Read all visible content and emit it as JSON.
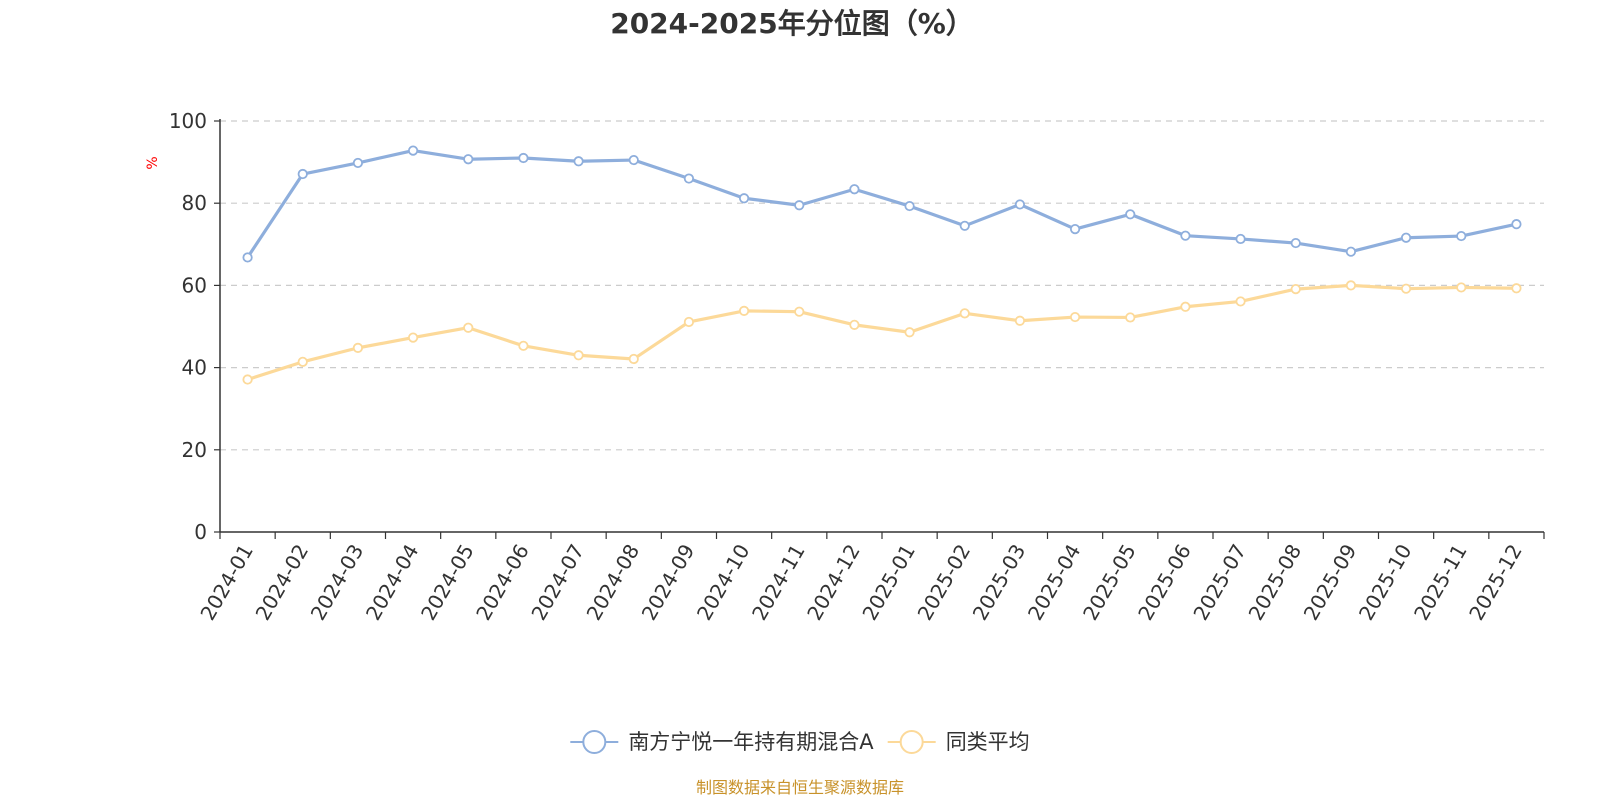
{
  "chart_data": {
    "type": "line",
    "title": "2024-2025年分位图（%）",
    "ylabel": "%",
    "ylabel_color": "#ff0000",
    "ylim": [
      0,
      100
    ],
    "yticks": [
      0,
      20,
      40,
      60,
      80,
      100
    ],
    "grid": true,
    "legend_position": "bottom",
    "categories": [
      "2024-01",
      "2024-02",
      "2024-03",
      "2024-04",
      "2024-05",
      "2024-06",
      "2024-07",
      "2024-08",
      "2024-09",
      "2024-10",
      "2024-11",
      "2024-12",
      "2025-01",
      "2025-02",
      "2025-03",
      "2025-04",
      "2025-05",
      "2025-06",
      "2025-07",
      "2025-08",
      "2025-09",
      "2025-10",
      "2025-11",
      "2025-12"
    ],
    "series": [
      {
        "name": "南方宁悦一年持有期混合A",
        "color": "#8eaedc",
        "values": [
          66.8,
          87.1,
          89.8,
          92.8,
          90.7,
          91.0,
          90.2,
          90.5,
          86.0,
          81.2,
          79.5,
          83.4,
          79.3,
          74.5,
          79.7,
          73.7,
          77.3,
          72.1,
          71.3,
          70.3,
          68.2,
          71.6,
          72.0,
          74.9
        ]
      },
      {
        "name": "同类平均",
        "color": "#fcd999",
        "values": [
          37.1,
          41.4,
          44.8,
          47.3,
          49.7,
          45.3,
          43.0,
          42.1,
          51.1,
          53.8,
          53.6,
          50.4,
          48.6,
          53.2,
          51.4,
          52.3,
          52.2,
          54.8,
          56.1,
          59.1,
          60.0,
          59.2,
          59.5,
          59.3
        ]
      }
    ]
  },
  "source_label": "制图数据来自恒生聚源数据库",
  "source_color": "#c8922a"
}
